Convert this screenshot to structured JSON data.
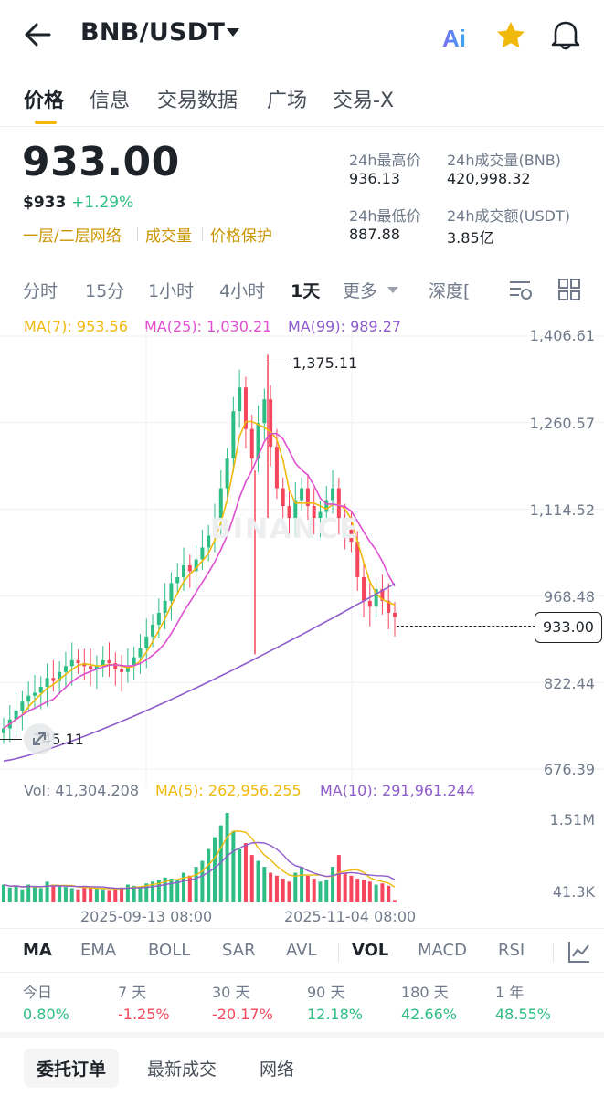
{
  "header": {
    "pair": "BNB/USDT",
    "icons": [
      "back-arrow-icon",
      "ai-icon",
      "star-icon",
      "bell-icon"
    ],
    "colors": {
      "star": "#f0b90b",
      "ai": "#5b7cf5"
    }
  },
  "tabs": [
    "价格",
    "信息",
    "交易数据",
    "广场",
    "交易-X"
  ],
  "price": {
    "last": "933.00",
    "usd": "$933",
    "change": "+1.29%",
    "tags": [
      "一层/二层网络",
      "成交量",
      "价格保护"
    ],
    "stats": {
      "high_label": "24h最高价",
      "high": "936.13",
      "vol_bnb_label": "24h成交量(BNB)",
      "vol_bnb": "420,998.32",
      "low_label": "24h最低价",
      "low": "887.88",
      "vol_usdt_label": "24h成交额(USDT)",
      "vol_usdt": "3.85亿"
    }
  },
  "intervals": [
    "分时",
    "15分",
    "1小时",
    "4小时",
    "1天",
    "更多",
    "深度["
  ],
  "ma_legend": {
    "ma7": "MA(7): 953.56",
    "ma25": "MA(25): 1,030.21",
    "ma99": "MA(99): 989.27"
  },
  "colors": {
    "up": "#2ebd85",
    "down": "#f6465d",
    "ma7": "#f0b90b",
    "ma25": "#e04fd1",
    "ma99": "#8e5ccc",
    "accent": "#f0b90b"
  },
  "price_axis": [
    "1,406.61",
    "1,260.57",
    "1,114.52",
    "968.48",
    "822.44",
    "676.39"
  ],
  "price_marker": "933.00",
  "high_marker": "1,375.11",
  "low_marker": "745.11",
  "watermark": "BINANCE",
  "volume": {
    "legend_vol": "Vol: 41,304.208",
    "legend_ma5": "MA(5): 262,956.255",
    "legend_ma10": "MA(10): 291,961.244",
    "axis": [
      "1.51M",
      "41.3K"
    ]
  },
  "dates": [
    "2025-09-13 08:00",
    "2025-11-04 08:00"
  ],
  "indicators": [
    "MA",
    "EMA",
    "BOLL",
    "SAR",
    "AVL",
    "VOL",
    "MACD",
    "RSI"
  ],
  "performance": [
    {
      "label": "今日",
      "value": "0.80%",
      "dir": "up"
    },
    {
      "label": "7 天",
      "value": "-1.25%",
      "dir": "down"
    },
    {
      "label": "30 天",
      "value": "-20.17%",
      "dir": "down"
    },
    {
      "label": "90 天",
      "value": "12.18%",
      "dir": "up"
    },
    {
      "label": "180 天",
      "value": "42.66%",
      "dir": "up"
    },
    {
      "label": "1 年",
      "value": "48.55%",
      "dir": "up"
    }
  ],
  "bottom_tabs": [
    "委托订单",
    "最新成交",
    "网络"
  ],
  "chart_data": {
    "type": "candlestick",
    "title": "",
    "ylim": [
      676.39,
      1406.61
    ],
    "x": [
      "2025-09-13 08:00",
      "2025-11-04 08:00"
    ],
    "close_series": [
      745,
      760,
      775,
      790,
      800,
      805,
      815,
      830,
      825,
      840,
      850,
      860,
      855,
      850,
      845,
      850,
      860,
      855,
      845,
      840,
      850,
      865,
      880,
      900,
      920,
      940,
      960,
      990,
      1000,
      1020,
      1010,
      1030,
      1050,
      1070,
      1100,
      1150,
      1200,
      1280,
      1320,
      1250,
      1200,
      1260,
      1300,
      1220,
      1150,
      1120,
      1100,
      1130,
      1150,
      1120,
      1100,
      1110,
      1130,
      1150,
      1100,
      1080,
      1060,
      1000,
      960,
      950,
      980,
      960,
      940,
      933
    ],
    "ma7_end": 953.56,
    "ma25_end": 1030.21,
    "ma99_end": 989.27,
    "last": 933.0,
    "high": 1375.11,
    "low": 745.11,
    "volume": {
      "ylim": [
        41300,
        1510000
      ],
      "values": [
        300000,
        250000,
        280000,
        220000,
        300000,
        260000,
        240000,
        350000,
        300000,
        280000,
        260000,
        240000,
        220000,
        260000,
        240000,
        230000,
        220000,
        210000,
        230000,
        250000,
        300000,
        280000,
        260000,
        320000,
        350000,
        380000,
        420000,
        400000,
        380000,
        500000,
        450000,
        600000,
        700000,
        900000,
        1100000,
        1300000,
        1510000,
        1200000,
        900000,
        1000000,
        800000,
        700000,
        600000,
        500000,
        450000,
        400000,
        350000,
        500000,
        600000,
        450000,
        400000,
        350000,
        380000,
        600000,
        800000,
        500000,
        450000,
        400000,
        380000,
        350000,
        300000,
        320000,
        280000,
        41304
      ]
    }
  }
}
